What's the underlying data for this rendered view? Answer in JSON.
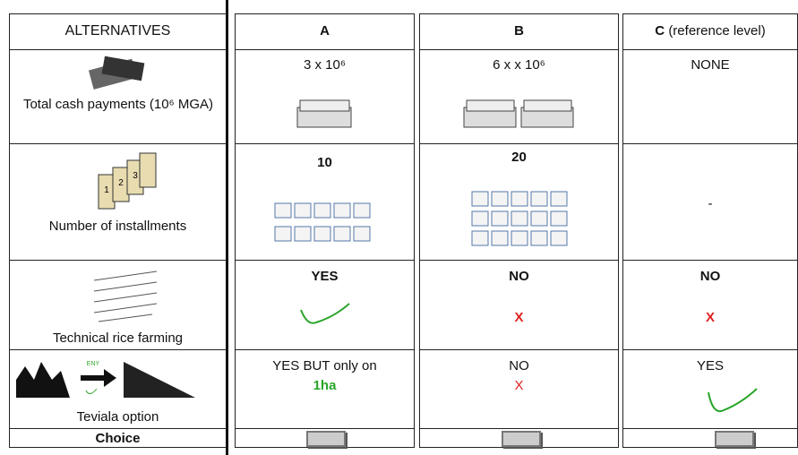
{
  "header": {
    "label": "ALTERNATIVES",
    "a": "A",
    "b": "B",
    "c": "C",
    "c_note": "(reference level)"
  },
  "rows": [
    {
      "label": "Total cash payments (10⁶ MGA)",
      "a": "3 x 10⁶",
      "b": "6 x x 10⁶",
      "c": "NONE"
    },
    {
      "label": "Number of installments",
      "a": "10",
      "b": "20",
      "c": "-"
    },
    {
      "label": "Technical rice farming",
      "a": "YES",
      "b": "NO",
      "b_mark": "X",
      "c": "NO",
      "c_mark": "X"
    },
    {
      "label": "Teviala option",
      "a": "YES BUT only on",
      "a_highlight": "1ha",
      "b": "NO",
      "b_mark": "X",
      "c": "YES"
    }
  ],
  "choice": {
    "label": "Choice"
  },
  "icons": {
    "scroll_numbers": [
      "1",
      "2",
      "3"
    ],
    "teviala_tag": "ENY"
  }
}
